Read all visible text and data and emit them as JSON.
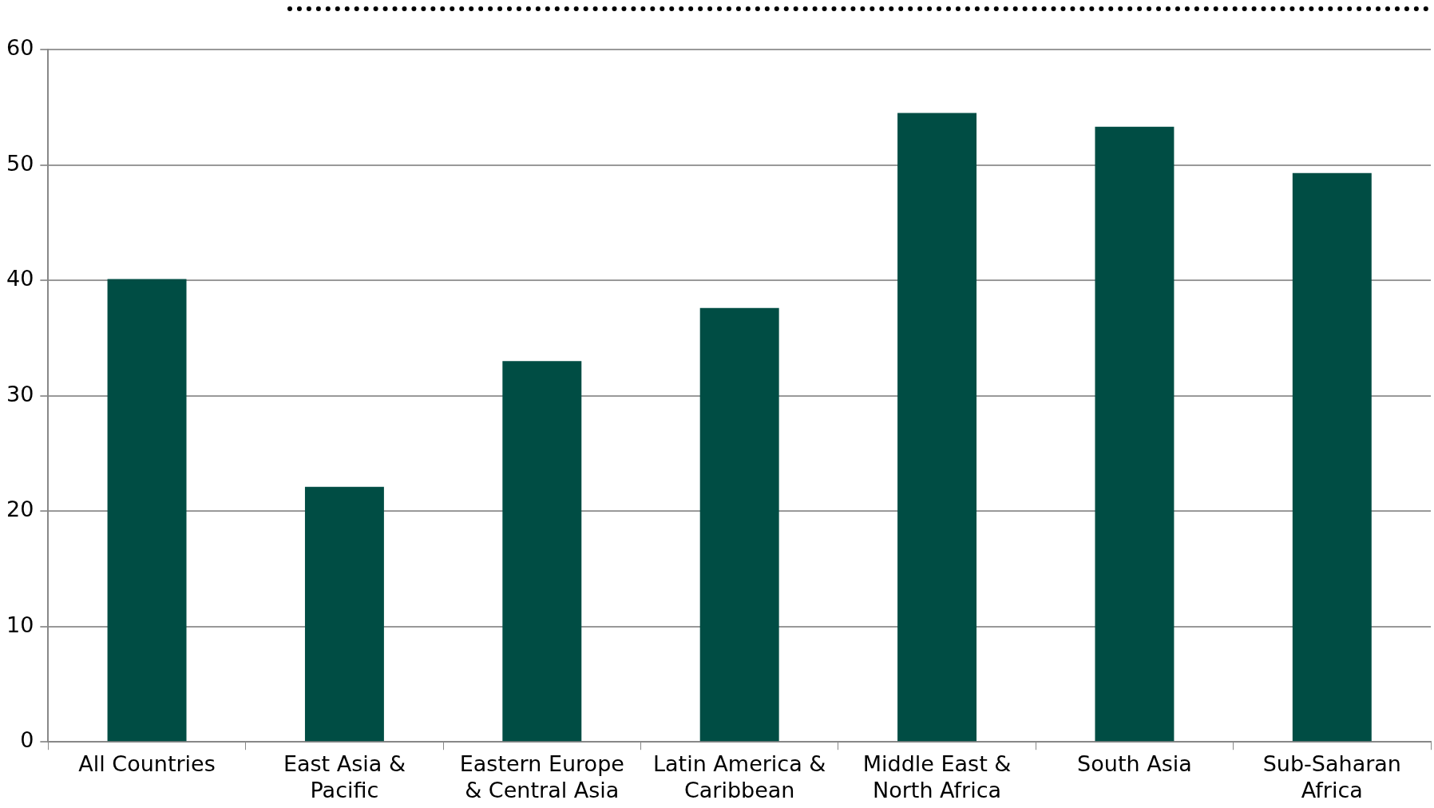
{
  "chart_data": {
    "type": "bar",
    "categories": [
      "All Countries",
      "East Asia & Pacific",
      "Eastern Europe & Central Asia",
      "Latin America & Caribbean",
      "Middle East & North Africa",
      "South Asia",
      "Sub-Saharan Africa"
    ],
    "values": [
      40.1,
      22.1,
      33.0,
      37.6,
      54.5,
      53.3,
      49.3
    ],
    "color": "#004d44",
    "ylim": [
      0,
      60
    ],
    "yticks": [
      0,
      10,
      20,
      30,
      40,
      50,
      60
    ],
    "grid": "y",
    "legend": false
  }
}
